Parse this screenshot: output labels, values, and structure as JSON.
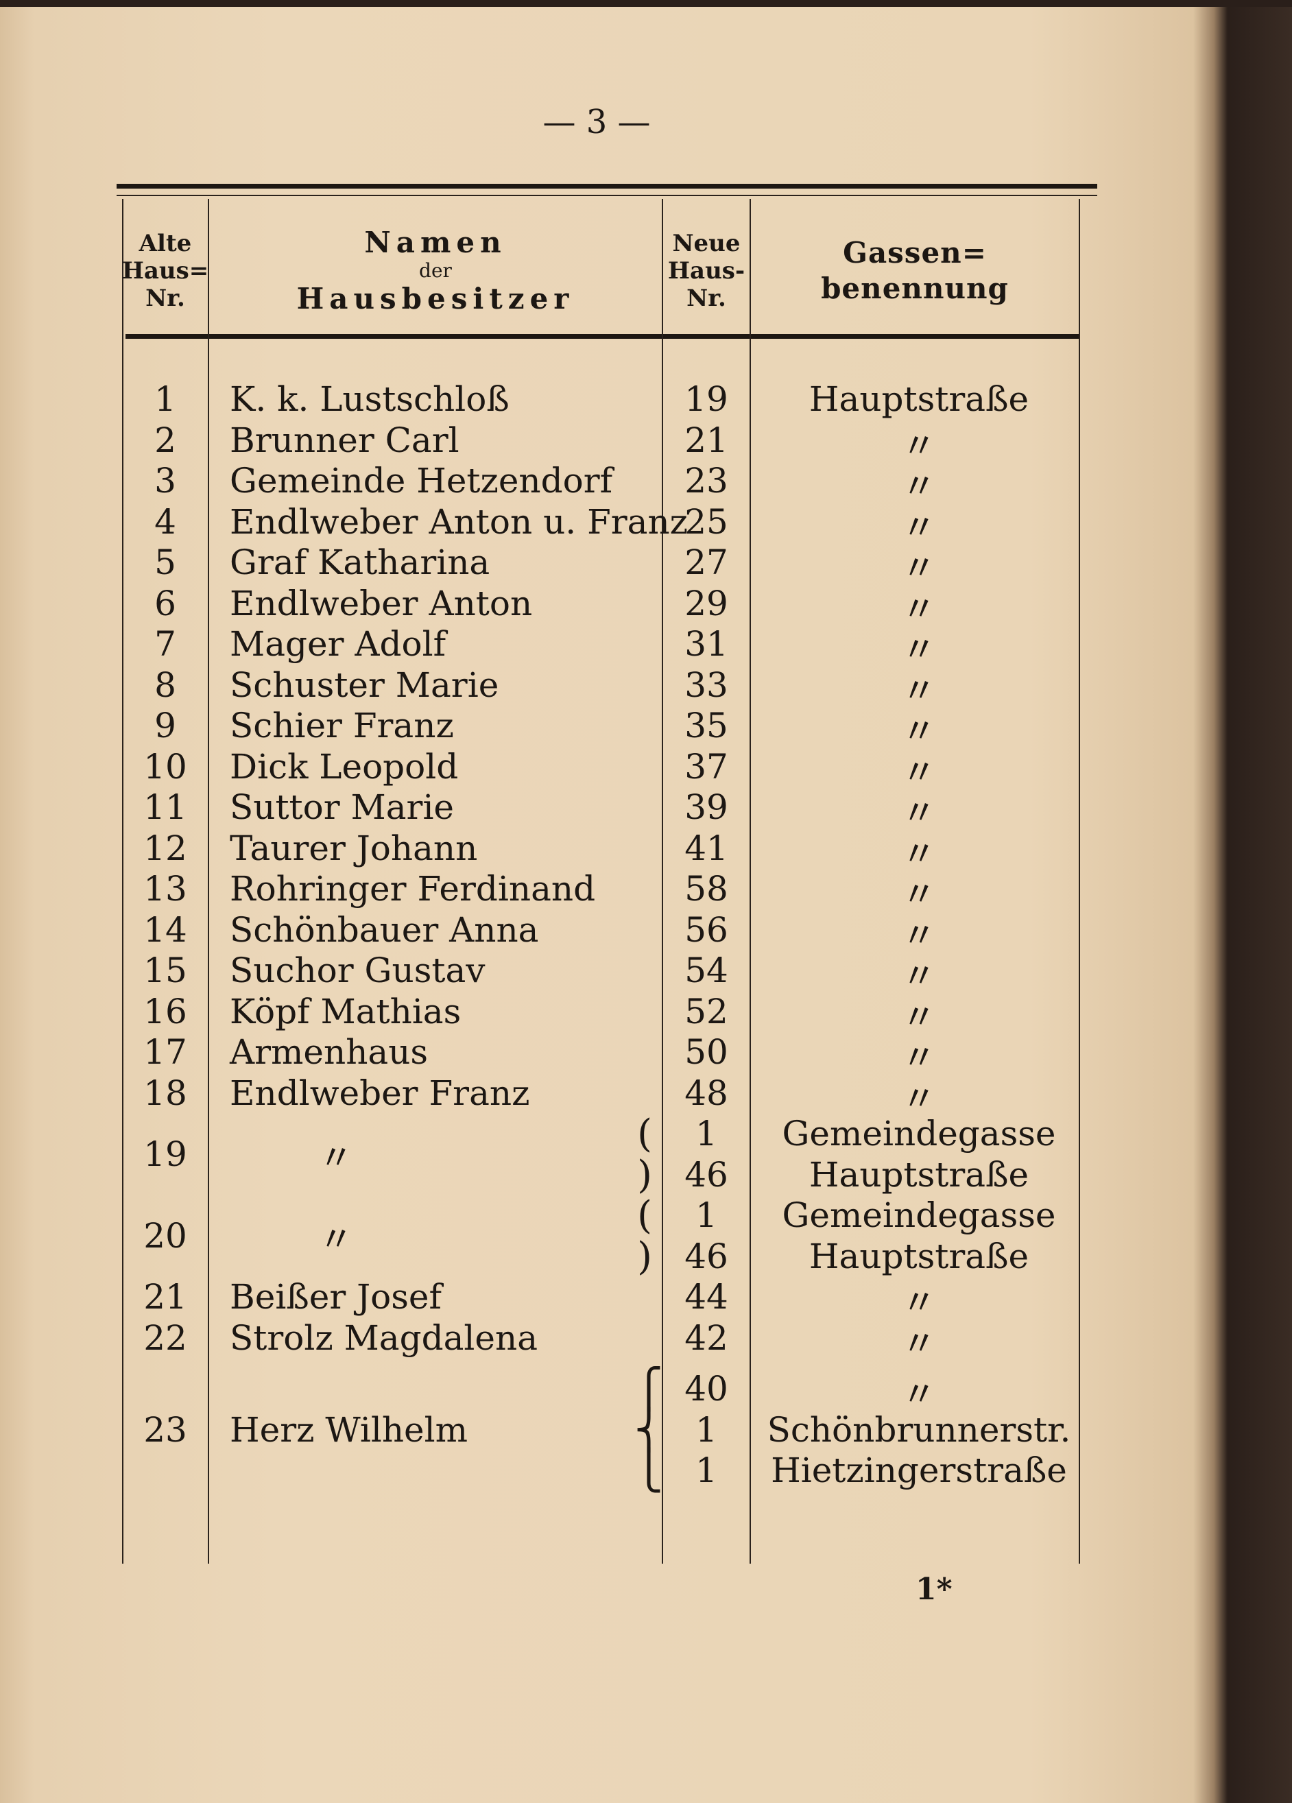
{
  "page_number": "— 3 —",
  "footer_signature": "1*",
  "header": {
    "alt_nr": [
      "Alte",
      "Haus=",
      "Nr."
    ],
    "namen": "Namen",
    "der": "der",
    "hausbesitzer": "Hausbesitzer",
    "neu_nr": [
      "Neue",
      "Haus-",
      "Nr."
    ],
    "gassen": [
      "Gassen=",
      "benennung"
    ]
  },
  "rows": [
    {
      "alt": "1",
      "name": "K. k. Lustschloß",
      "neu": [
        "19"
      ],
      "street": [
        "Hauptstraße"
      ]
    },
    {
      "alt": "2",
      "name": "Brunner Carl",
      "neu": [
        "21"
      ],
      "street": [
        "〃"
      ]
    },
    {
      "alt": "3",
      "name": "Gemeinde Hetzendorf",
      "neu": [
        "23"
      ],
      "street": [
        "〃"
      ]
    },
    {
      "alt": "4",
      "name": "Endlweber Anton u. Franz",
      "neu": [
        "25"
      ],
      "street": [
        "〃"
      ]
    },
    {
      "alt": "5",
      "name": "Graf Katharina",
      "neu": [
        "27"
      ],
      "street": [
        "〃"
      ]
    },
    {
      "alt": "6",
      "name": "Endlweber Anton",
      "neu": [
        "29"
      ],
      "street": [
        "〃"
      ]
    },
    {
      "alt": "7",
      "name": "Mager Adolf",
      "neu": [
        "31"
      ],
      "street": [
        "〃"
      ]
    },
    {
      "alt": "8",
      "name": "Schuster Marie",
      "neu": [
        "33"
      ],
      "street": [
        "〃"
      ]
    },
    {
      "alt": "9",
      "name": "Schier Franz",
      "neu": [
        "35"
      ],
      "street": [
        "〃"
      ]
    },
    {
      "alt": "10",
      "name": "Dick Leopold",
      "neu": [
        "37"
      ],
      "street": [
        "〃"
      ]
    },
    {
      "alt": "11",
      "name": "Suttor Marie",
      "neu": [
        "39"
      ],
      "street": [
        "〃"
      ]
    },
    {
      "alt": "12",
      "name": "Taurer Johann",
      "neu": [
        "41"
      ],
      "street": [
        "〃"
      ]
    },
    {
      "alt": "13",
      "name": "Rohringer Ferdinand",
      "neu": [
        "58"
      ],
      "street": [
        "〃"
      ]
    },
    {
      "alt": "14",
      "name": "Schönbauer Anna",
      "neu": [
        "56"
      ],
      "street": [
        "〃"
      ]
    },
    {
      "alt": "15",
      "name": "Suchor Gustav",
      "neu": [
        "54"
      ],
      "street": [
        "〃"
      ]
    },
    {
      "alt": "16",
      "name": "Köpf Mathias",
      "neu": [
        "52"
      ],
      "street": [
        "〃"
      ]
    },
    {
      "alt": "17",
      "name": "Armenhaus",
      "neu": [
        "50"
      ],
      "street": [
        "〃"
      ]
    },
    {
      "alt": "18",
      "name": "Endlweber Franz",
      "neu": [
        "48"
      ],
      "street": [
        "〃"
      ]
    },
    {
      "alt": "19",
      "name": "〃",
      "neu": [
        "1",
        "46"
      ],
      "street": [
        "Gemeindegasse",
        "Hauptstraße"
      ]
    },
    {
      "alt": "20",
      "name": "〃",
      "neu": [
        "1",
        "46"
      ],
      "street": [
        "Gemeindegasse",
        "Hauptstraße"
      ]
    },
    {
      "alt": "21",
      "name": "Beißer Josef",
      "neu": [
        "44"
      ],
      "street": [
        "〃"
      ]
    },
    {
      "alt": "22",
      "name": "Strolz Magdalena",
      "neu": [
        "42"
      ],
      "street": [
        "〃"
      ]
    },
    {
      "alt": "23",
      "name": "Herz Wilhelm",
      "neu": [
        "40",
        "1",
        "1"
      ],
      "street": [
        "〃",
        "Schönbrunnerstr.",
        "Hietzingerstraße"
      ]
    }
  ]
}
